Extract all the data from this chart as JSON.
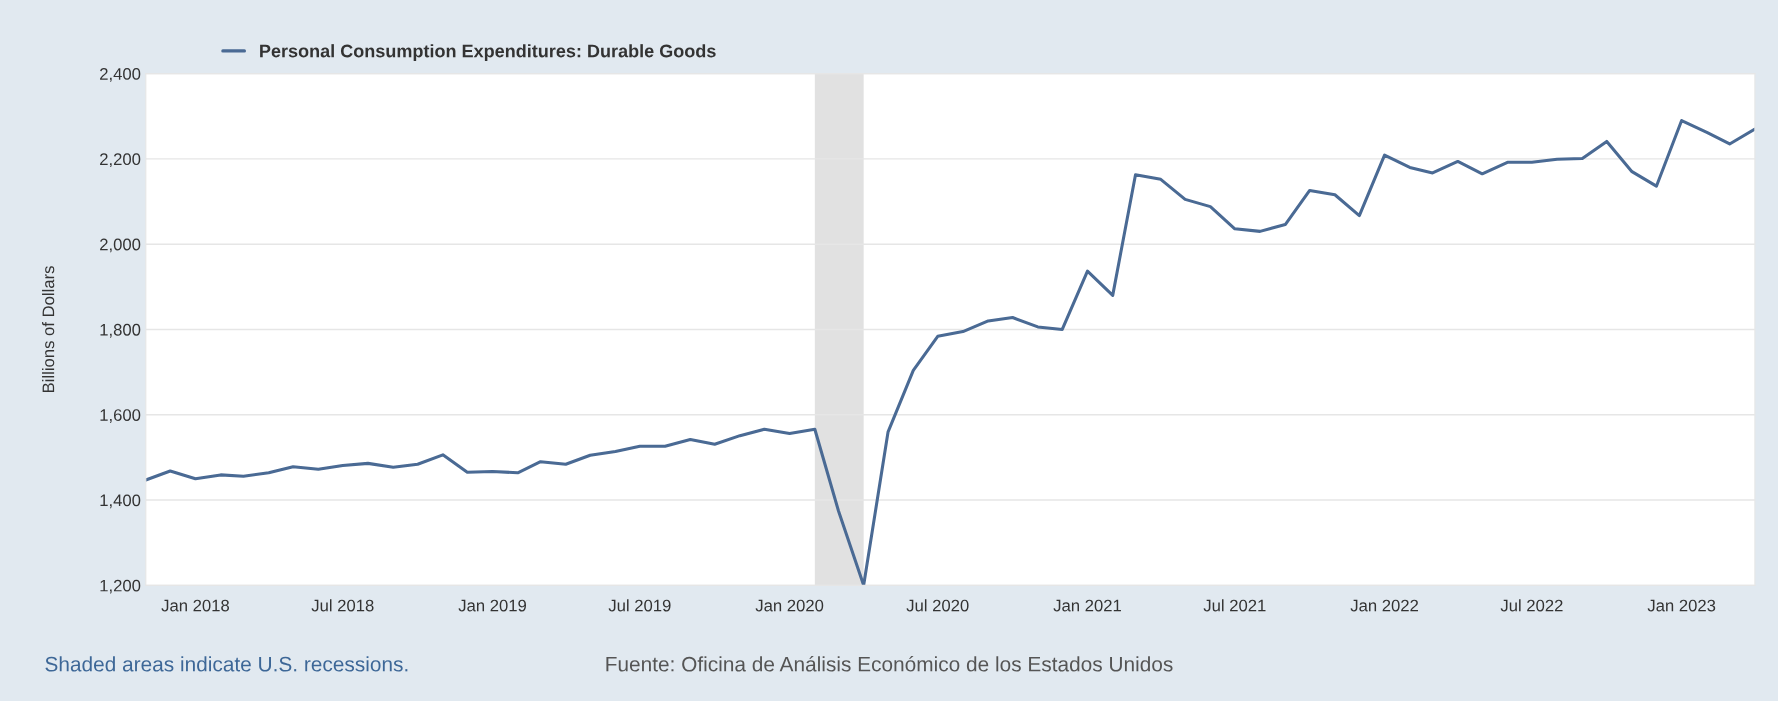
{
  "chart_data": {
    "type": "line",
    "ylabel": "Billions of Dollars",
    "x": [
      "2017-11",
      "2017-12",
      "2018-01",
      "2018-02",
      "2018-03",
      "2018-04",
      "2018-05",
      "2018-06",
      "2018-07",
      "2018-08",
      "2018-09",
      "2018-10",
      "2018-11",
      "2018-12",
      "2019-01",
      "2019-02",
      "2019-03",
      "2019-04",
      "2019-05",
      "2019-06",
      "2019-07",
      "2019-08",
      "2019-09",
      "2019-10",
      "2019-11",
      "2019-12",
      "2020-01",
      "2020-02",
      "2020-03",
      "2020-04",
      "2020-05",
      "2020-06",
      "2020-07",
      "2020-08",
      "2020-09",
      "2020-10",
      "2020-11",
      "2020-12",
      "2021-01",
      "2021-02",
      "2021-03",
      "2021-04",
      "2021-05",
      "2021-06",
      "2021-07",
      "2021-08",
      "2021-09",
      "2021-10",
      "2021-11",
      "2021-12",
      "2022-01",
      "2022-02",
      "2022-03",
      "2022-04",
      "2022-05",
      "2022-06",
      "2022-07",
      "2022-08",
      "2022-09",
      "2022-10",
      "2022-11",
      "2022-12",
      "2023-01",
      "2023-02",
      "2023-03",
      "2023-04"
    ],
    "series": [
      {
        "name": "Personal Consumption Expenditures: Durable Goods",
        "color": "#4a6a94",
        "values": [
          1447,
          1468,
          1450,
          1459,
          1456,
          1464,
          1478,
          1472,
          1481,
          1486,
          1477,
          1484,
          1506,
          1465,
          1467,
          1464,
          1490,
          1484,
          1505,
          1514,
          1526,
          1526,
          1542,
          1531,
          1551,
          1566,
          1556,
          1566,
          1375,
          1200,
          1560,
          1704,
          1784,
          1795,
          1820,
          1828,
          1806,
          1800,
          1937,
          1880,
          2163,
          2152,
          2105,
          2088,
          2036,
          2030,
          2046,
          2126,
          2116,
          2067,
          2209,
          2180,
          2167,
          2194,
          2165,
          2192,
          2192,
          2199,
          2201,
          2241,
          2170,
          2136,
          2290,
          2262,
          2235,
          2270
        ]
      }
    ],
    "xlim": [
      "2017-11",
      "2023-04"
    ],
    "xticks": [
      {
        "value": "2018-01",
        "label": "Jan 2018"
      },
      {
        "value": "2018-07",
        "label": "Jul 2018"
      },
      {
        "value": "2019-01",
        "label": "Jan 2019"
      },
      {
        "value": "2019-07",
        "label": "Jul 2019"
      },
      {
        "value": "2020-01",
        "label": "Jan 2020"
      },
      {
        "value": "2020-07",
        "label": "Jul 2020"
      },
      {
        "value": "2021-01",
        "label": "Jan 2021"
      },
      {
        "value": "2021-07",
        "label": "Jul 2021"
      },
      {
        "value": "2022-01",
        "label": "Jan 2022"
      },
      {
        "value": "2022-07",
        "label": "Jul 2022"
      },
      {
        "value": "2023-01",
        "label": "Jan 2023"
      }
    ],
    "ylim": [
      1200,
      2400
    ],
    "yticks": [
      {
        "value": 1200,
        "label": "1,200"
      },
      {
        "value": 1400,
        "label": "1,400"
      },
      {
        "value": 1600,
        "label": "1,600"
      },
      {
        "value": 1800,
        "label": "1,800"
      },
      {
        "value": 2000,
        "label": "2,000"
      },
      {
        "value": 2200,
        "label": "2,200"
      },
      {
        "value": 2400,
        "label": "2,400"
      }
    ],
    "bands": [
      {
        "axis": "x",
        "from": "2020-02",
        "to": "2020-04",
        "color": "#e1e1e1"
      }
    ],
    "grid": "y",
    "legend": "top left",
    "annotations": [
      "Shaded areas indicate U.S. recessions.",
      "Fuente: Oficina de Análisis Económico de los Estados Unidos"
    ]
  }
}
